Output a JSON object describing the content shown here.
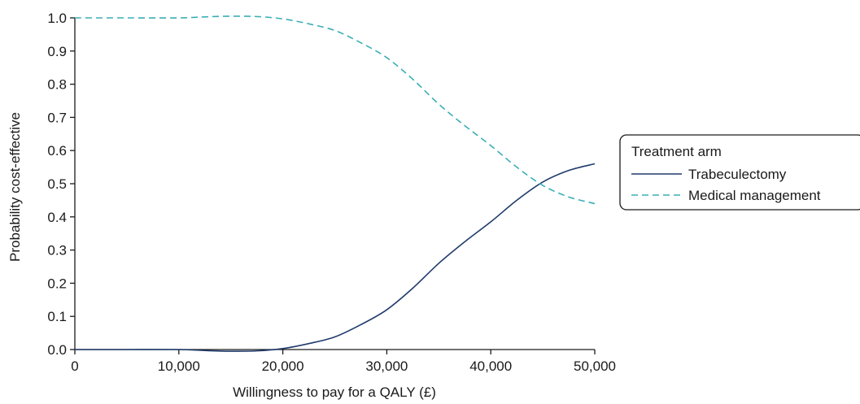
{
  "chart_data": {
    "type": "line",
    "xlabel": "Willingness to pay for a QALY (£)",
    "ylabel": "Probability cost-effective",
    "xlim": [
      0,
      50000
    ],
    "ylim": [
      0,
      1
    ],
    "x_ticks": [
      0,
      10000,
      20000,
      30000,
      40000,
      50000
    ],
    "x_tick_labels": [
      "0",
      "10,000",
      "20,000",
      "30,000",
      "40,000",
      "50,000"
    ],
    "y_ticks": [
      0,
      0.1,
      0.2,
      0.3,
      0.4,
      0.5,
      0.6,
      0.7,
      0.8,
      0.9,
      1.0
    ],
    "y_tick_labels": [
      "0.0",
      "0.1",
      "0.2",
      "0.3",
      "0.4",
      "0.5",
      "0.6",
      "0.7",
      "0.8",
      "0.9",
      "1.0"
    ],
    "grid": false,
    "legend": {
      "title": "Treatment arm",
      "placement": "right"
    },
    "series": [
      {
        "name": "Trabeculectomy",
        "style": "solid",
        "color": "#1f3a6b",
        "x": [
          0,
          5000,
          10000,
          12500,
          15000,
          17500,
          20000,
          22500,
          25000,
          27500,
          30000,
          32500,
          35000,
          37500,
          40000,
          42500,
          45000,
          47500,
          50000
        ],
        "y": [
          0,
          0,
          0,
          -0.003,
          -0.005,
          -0.004,
          0.003,
          0.018,
          0.038,
          0.075,
          0.12,
          0.185,
          0.26,
          0.325,
          0.385,
          0.45,
          0.505,
          0.54,
          0.56
        ]
      },
      {
        "name": "Medical management",
        "style": "dashed",
        "color": "#3aafb5",
        "x": [
          0,
          5000,
          10000,
          12500,
          15000,
          17500,
          20000,
          22500,
          25000,
          27500,
          30000,
          32500,
          35000,
          37500,
          40000,
          42500,
          45000,
          47500,
          50000
        ],
        "y": [
          1.0,
          1.0,
          1.0,
          1.003,
          1.005,
          1.004,
          0.997,
          0.982,
          0.962,
          0.925,
          0.88,
          0.815,
          0.74,
          0.675,
          0.615,
          0.55,
          0.495,
          0.46,
          0.44
        ]
      }
    ]
  }
}
